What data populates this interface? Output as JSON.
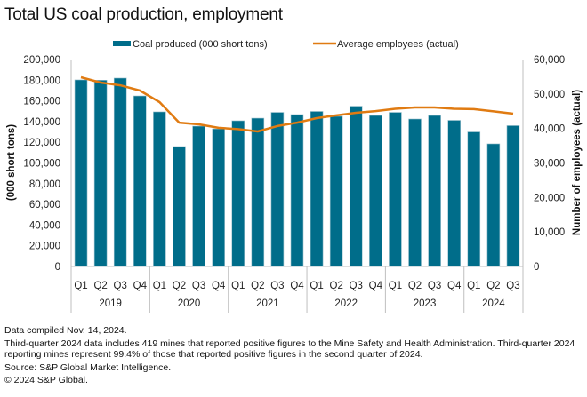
{
  "chart_data": {
    "type": "bar",
    "title": "Total US coal production, employment",
    "categories": [
      "Q1",
      "Q2",
      "Q3",
      "Q4",
      "Q1",
      "Q2",
      "Q3",
      "Q4",
      "Q1",
      "Q2",
      "Q3",
      "Q4",
      "Q1",
      "Q2",
      "Q3",
      "Q4",
      "Q1",
      "Q2",
      "Q3",
      "Q4",
      "Q1",
      "Q2",
      "Q3"
    ],
    "groups": [
      {
        "label": "2019",
        "count": 4
      },
      {
        "label": "2020",
        "count": 4
      },
      {
        "label": "2021",
        "count": 4
      },
      {
        "label": "2022",
        "count": 4
      },
      {
        "label": "2023",
        "count": 4
      },
      {
        "label": "2024",
        "count": 3
      }
    ],
    "series": [
      {
        "name": "Coal produced (000 short tons)",
        "type": "bar",
        "axis": "left",
        "color": "#006d8a",
        "values": [
          180300,
          180000,
          182000,
          164800,
          149400,
          115900,
          135600,
          133000,
          140800,
          143300,
          148900,
          146800,
          149800,
          145100,
          154900,
          145900,
          148900,
          142500,
          145900,
          141200,
          130000,
          118500,
          136100
        ]
      },
      {
        "name": "Average employees (actual)",
        "type": "line",
        "axis": "right",
        "color": "#e07b12",
        "values": [
          54850,
          53300,
          52500,
          51000,
          47650,
          41700,
          41200,
          40200,
          39800,
          39150,
          40700,
          41700,
          43000,
          43800,
          44550,
          45050,
          45700,
          46100,
          46100,
          45700,
          45600,
          44950,
          44300
        ]
      }
    ],
    "ylabel": "(000 short tons)",
    "ylabel_right": "Number of employees (actual)",
    "ylim": [
      0,
      200000
    ],
    "ylim_right": [
      0,
      60000
    ],
    "yticks": [
      "0",
      "20,000",
      "40,000",
      "60,000",
      "80,000",
      "100,000",
      "120,000",
      "140,000",
      "160,000",
      "180,000",
      "200,000"
    ],
    "yticks_right": [
      "0",
      "10,000",
      "20,000",
      "30,000",
      "40,000",
      "50,000",
      "60,000"
    ],
    "legend_position": "top",
    "grid": false
  },
  "footnotes": [
    "Data compiled Nov. 14, 2024.",
    "Third-quarter 2024 data includes 419 mines that reported positive figures to the Mine Safety and Health Administration. Third-quarter 2024 reporting mines represent 99.4% of those that reported positive figures in the second quarter of 2024.",
    "Source: S&P Global Market Intelligence.",
    "© 2024 S&P Global."
  ]
}
